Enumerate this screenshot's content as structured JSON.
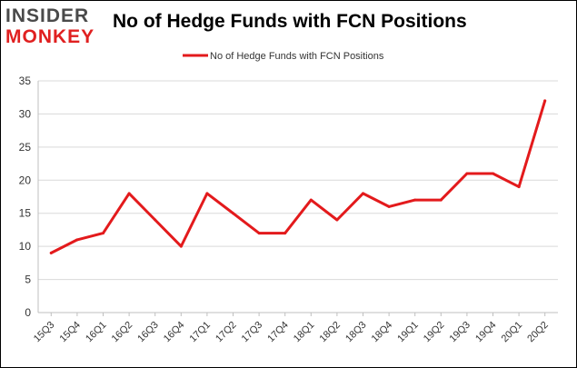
{
  "logo": {
    "line1": "INSIDER",
    "line2": "MONKEY"
  },
  "chart_data": {
    "type": "line",
    "title": "No of Hedge Funds with FCN Positions",
    "xlabel": "",
    "ylabel": "",
    "categories": [
      "15Q3",
      "15Q4",
      "16Q1",
      "16Q2",
      "16Q3",
      "16Q4",
      "17Q1",
      "17Q2",
      "17Q3",
      "17Q4",
      "18Q1",
      "18Q2",
      "18Q3",
      "18Q4",
      "19Q1",
      "19Q2",
      "19Q3",
      "19Q4",
      "20Q1",
      "20Q2"
    ],
    "series": [
      {
        "name": "No of Hedge Funds with FCN Positions",
        "color": "#e31a1c",
        "values": [
          9,
          11,
          12,
          18,
          14,
          10,
          18,
          15,
          12,
          12,
          17,
          14,
          18,
          16,
          17,
          17,
          21,
          21,
          19,
          32
        ]
      }
    ],
    "ylim": [
      0,
      35
    ],
    "yticks": [
      0,
      5,
      10,
      15,
      20,
      25,
      30,
      35
    ],
    "grid": true,
    "legend": "top-center"
  }
}
